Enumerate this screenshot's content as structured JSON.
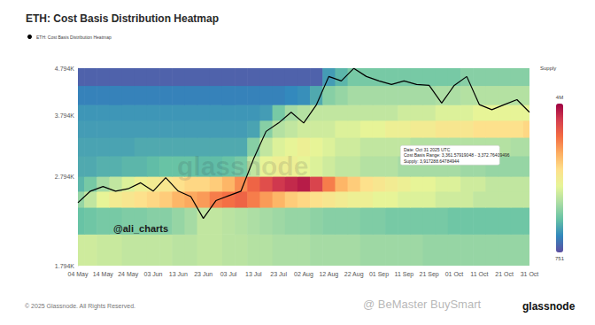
{
  "chart_data": {
    "type": "line",
    "title": "ETH: Cost Basis Distribution Heatmap",
    "legend": "top-left",
    "grid": false,
    "log": "y",
    "categories": [
      "04 May",
      null,
      "14 May",
      null,
      "24 May",
      null,
      "03 Jun",
      null,
      "13 Jun",
      null,
      "23 Jun",
      null,
      "03 Jul",
      null,
      "13 Jul",
      null,
      "23 Jul",
      null,
      "02 Aug",
      null,
      "12 Aug",
      null,
      "22 Aug",
      null,
      "01 Sep",
      null,
      "11 Sep",
      null,
      "21 Sep",
      null,
      "01 Oct",
      null,
      "11 Oct",
      null,
      "21 Oct",
      null,
      "31 Oct"
    ],
    "series": [
      {
        "name": "ETH: Cost Basis Distribution Heatmap",
        "color": "#000000",
        "values": [
          2454,
          2600,
          2660,
          2600,
          2630,
          2710,
          2600,
          2780,
          2600,
          2530,
          2270,
          2480,
          2540,
          2600,
          3050,
          3500,
          3650,
          3850,
          3650,
          3990,
          4600,
          4500,
          4790,
          4600,
          4500,
          4420,
          4500,
          4420,
          4400,
          4030,
          4400,
          4600,
          4000,
          3900,
          4000,
          4100,
          3850
        ]
      }
    ],
    "ylim": [
      1794,
      4794
    ],
    "yticks": [
      {
        "value": 1794,
        "label": "1.794K"
      },
      {
        "value": 2794,
        "label": "2.794K"
      },
      {
        "value": 3794,
        "label": "3.794K"
      },
      {
        "value": 4794,
        "label": "4.794K"
      }
    ],
    "cost_basis_bins": [
      1794,
      2100,
      2400,
      2600,
      2800,
      3100,
      3400,
      3700,
      4000,
      4400,
      4794
    ],
    "supply_cells": [
      [
        1600000,
        1600000,
        1550000,
        1550000,
        1500000,
        1500000,
        1500000,
        1500000,
        1450000,
        1450000,
        1500000,
        1500000,
        1450000,
        1450000,
        1400000,
        1400000,
        1350000,
        1350000,
        1350000,
        1300000,
        1300000,
        1300000,
        1300000,
        1250000,
        1250000,
        1250000,
        1250000,
        1250000,
        1200000,
        1200000,
        1200000,
        1200000,
        1200000,
        1200000,
        1200000,
        1200000,
        1200000
      ],
      [
        900000,
        950000,
        1000000,
        1000000,
        1050000,
        1050000,
        1100000,
        1100000,
        1200000,
        1300000,
        1500000,
        1500000,
        1450000,
        1400000,
        1350000,
        1300000,
        1250000,
        1200000,
        1200000,
        1150000,
        1100000,
        1100000,
        1100000,
        1050000,
        1050000,
        1000000,
        1000000,
        1000000,
        1000000,
        1000000,
        950000,
        950000,
        950000,
        950000,
        950000,
        950000,
        950000
      ],
      [
        1200000,
        1500000,
        1800000,
        2000000,
        2100000,
        2200000,
        2300000,
        2400000,
        2600000,
        2700000,
        2800000,
        3000000,
        3100000,
        3200000,
        3000000,
        2800000,
        2600000,
        2400000,
        2300000,
        2200000,
        2100000,
        2000000,
        1900000,
        1900000,
        1800000,
        1800000,
        1700000,
        1700000,
        1700000,
        1600000,
        1600000,
        1600000,
        1500000,
        1500000,
        1500000,
        1500000,
        1500000
      ],
      [
        800000,
        1000000,
        1300000,
        1500000,
        1700000,
        1900000,
        2000000,
        2100000,
        2200000,
        2300000,
        2300000,
        2400000,
        2600000,
        2900000,
        3200000,
        3400000,
        3600000,
        3700000,
        3800000,
        3500000,
        3000000,
        2600000,
        2400000,
        2200000,
        2100000,
        2000000,
        1900000,
        1800000,
        1800000,
        1700000,
        1700000,
        1600000,
        1600000,
        1500000,
        1500000,
        1500000,
        1500000
      ],
      [
        700000,
        700000,
        750000,
        750000,
        800000,
        800000,
        850000,
        900000,
        900000,
        900000,
        850000,
        850000,
        900000,
        1000000,
        1500000,
        1800000,
        1900000,
        1900000,
        1800000,
        1700000,
        1600000,
        1500000,
        1500000,
        1400000,
        1400000,
        1400000,
        1300000,
        1300000,
        1300000,
        1300000,
        1300000,
        1250000,
        1250000,
        1200000,
        1200000,
        1200000,
        1200000
      ],
      [
        650000,
        650000,
        650000,
        650000,
        650000,
        700000,
        700000,
        700000,
        700000,
        700000,
        700000,
        700000,
        700000,
        700000,
        1100000,
        1500000,
        1700000,
        1800000,
        1900000,
        1800000,
        1700000,
        1600000,
        1600000,
        1500000,
        1500000,
        1500000,
        1500000,
        1400000,
        1400000,
        1400000,
        1400000,
        1400000,
        1400000,
        1400000,
        1400000,
        1350000,
        1350000
      ],
      [
        600000,
        600000,
        600000,
        600000,
        600000,
        600000,
        600000,
        600000,
        600000,
        600000,
        600000,
        600000,
        600000,
        600000,
        650000,
        1100000,
        1400000,
        1500000,
        1600000,
        1600000,
        1600000,
        1700000,
        1700000,
        1800000,
        1800000,
        1900000,
        1900000,
        2000000,
        2000000,
        2100000,
        2100000,
        2100000,
        2200000,
        2200000,
        2200000,
        2200000,
        2300000
      ],
      [
        550000,
        550000,
        550000,
        550000,
        550000,
        550000,
        550000,
        550000,
        550000,
        550000,
        550000,
        550000,
        550000,
        550000,
        550000,
        600000,
        1000000,
        1300000,
        1400000,
        1500000,
        1500000,
        1500000,
        1500000,
        1500000,
        1500000,
        1500000,
        1600000,
        1600000,
        1600000,
        1700000,
        1700000,
        1700000,
        1800000,
        1800000,
        1800000,
        1800000,
        1800000
      ],
      [
        400000,
        400000,
        400000,
        400000,
        400000,
        400000,
        400000,
        400000,
        400000,
        400000,
        400000,
        400000,
        400000,
        400000,
        400000,
        400000,
        400000,
        450000,
        500000,
        700000,
        1100000,
        1200000,
        1300000,
        1300000,
        1300000,
        1300000,
        1300000,
        1300000,
        1300000,
        1350000,
        1350000,
        1400000,
        1400000,
        1400000,
        1400000,
        1400000,
        1400000
      ],
      [
        150000,
        150000,
        150000,
        150000,
        150000,
        150000,
        150000,
        150000,
        150000,
        150000,
        150000,
        150000,
        150000,
        150000,
        150000,
        150000,
        150000,
        150000,
        150000,
        150000,
        600000,
        800000,
        1000000,
        1000000,
        1000000,
        1000000,
        1000000,
        1000000,
        1000000,
        1000000,
        1000000,
        1100000,
        1100000,
        1100000,
        1100000,
        1100000,
        1100000
      ]
    ],
    "colorbar": {
      "title": "Supply",
      "range": [
        751,
        4000000
      ],
      "ticks": [
        751,
        {
          "value": 4000000,
          "label": "4M"
        }
      ]
    },
    "annotations": [
      "Date: Oct 31 2025 UTC",
      "Cost Basis Range: 3,361.57919048 - 3,372.76409496",
      "Supply: 3,917288.64784944"
    ],
    "watermarks": [
      "glassnode",
      "@ali_charts",
      "@ BeMaster BuySmart",
      "glassnode"
    ],
    "footer": "© 2025 Glassnode. All Rights Reserved."
  }
}
